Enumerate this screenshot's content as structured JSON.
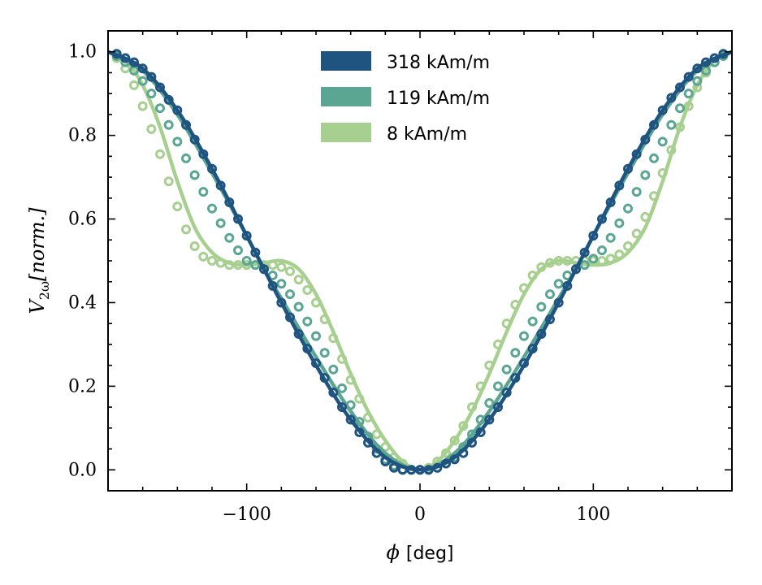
{
  "chart_data": {
    "type": "line",
    "xlabel_symbol": "ϕ",
    "xlabel_unit": "[deg]",
    "ylabel_main": "V",
    "ylabel_sub": "2ω",
    "ylabel_rest": "[norm.]",
    "xlim": [
      -180,
      180
    ],
    "ylim": [
      -0.05,
      1.05
    ],
    "xticks": [
      -100,
      0,
      100
    ],
    "xtick_labels": [
      "−100",
      "0",
      "100"
    ],
    "yticks": [
      0.0,
      0.2,
      0.4,
      0.6,
      0.8,
      1.0
    ],
    "ytick_labels": [
      "0.0",
      "0.2",
      "0.4",
      "0.6",
      "0.8",
      "1.0"
    ],
    "legend_position": "top-center",
    "series": [
      {
        "name": "318 kAm/m",
        "color": "#1f5481",
        "line": [
          [
            -180,
            1.0
          ],
          [
            -160,
            0.96
          ],
          [
            -140,
            0.86
          ],
          [
            -120,
            0.72
          ],
          [
            -100,
            0.56
          ],
          [
            -90,
            0.48
          ],
          [
            -80,
            0.4
          ],
          [
            -60,
            0.25
          ],
          [
            -40,
            0.12
          ],
          [
            -20,
            0.03
          ],
          [
            0,
            0.0
          ],
          [
            20,
            0.03
          ],
          [
            40,
            0.12
          ],
          [
            60,
            0.25
          ],
          [
            80,
            0.4
          ],
          [
            90,
            0.48
          ],
          [
            100,
            0.56
          ],
          [
            120,
            0.72
          ],
          [
            140,
            0.86
          ],
          [
            160,
            0.96
          ],
          [
            180,
            1.0
          ]
        ],
        "markers": [
          [
            -175,
            0.995
          ],
          [
            -170,
            0.985
          ],
          [
            -165,
            0.975
          ],
          [
            -160,
            0.96
          ],
          [
            -155,
            0.94
          ],
          [
            -150,
            0.915
          ],
          [
            -145,
            0.885
          ],
          [
            -140,
            0.86
          ],
          [
            -135,
            0.825
          ],
          [
            -130,
            0.79
          ],
          [
            -125,
            0.755
          ],
          [
            -120,
            0.72
          ],
          [
            -115,
            0.68
          ],
          [
            -110,
            0.64
          ],
          [
            -105,
            0.6
          ],
          [
            -100,
            0.56
          ],
          [
            -95,
            0.52
          ],
          [
            -90,
            0.48
          ],
          [
            -85,
            0.44
          ],
          [
            -80,
            0.4
          ],
          [
            -75,
            0.365
          ],
          [
            -70,
            0.325
          ],
          [
            -65,
            0.29
          ],
          [
            -60,
            0.255
          ],
          [
            -55,
            0.22
          ],
          [
            -50,
            0.185
          ],
          [
            -45,
            0.15
          ],
          [
            -40,
            0.12
          ],
          [
            -35,
            0.09
          ],
          [
            -30,
            0.065
          ],
          [
            -25,
            0.04
          ],
          [
            -20,
            0.02
          ],
          [
            -15,
            0.005
          ],
          [
            -10,
            0.0
          ],
          [
            -5,
            0.0
          ],
          [
            0,
            0.0
          ],
          [
            5,
            0.0
          ],
          [
            10,
            0.005
          ],
          [
            15,
            0.015
          ],
          [
            20,
            0.025
          ],
          [
            25,
            0.04
          ],
          [
            30,
            0.065
          ],
          [
            35,
            0.09
          ],
          [
            40,
            0.12
          ],
          [
            45,
            0.15
          ],
          [
            50,
            0.185
          ],
          [
            55,
            0.22
          ],
          [
            60,
            0.255
          ],
          [
            65,
            0.29
          ],
          [
            70,
            0.325
          ],
          [
            75,
            0.36
          ],
          [
            80,
            0.4
          ],
          [
            85,
            0.44
          ],
          [
            90,
            0.48
          ],
          [
            95,
            0.52
          ],
          [
            100,
            0.56
          ],
          [
            105,
            0.6
          ],
          [
            110,
            0.64
          ],
          [
            115,
            0.68
          ],
          [
            120,
            0.72
          ],
          [
            125,
            0.755
          ],
          [
            130,
            0.79
          ],
          [
            135,
            0.825
          ],
          [
            140,
            0.86
          ],
          [
            145,
            0.89
          ],
          [
            150,
            0.915
          ],
          [
            155,
            0.94
          ],
          [
            160,
            0.96
          ],
          [
            165,
            0.975
          ],
          [
            170,
            0.985
          ],
          [
            175,
            0.995
          ]
        ]
      },
      {
        "name": "119 kAm/m",
        "color": "#5aa692",
        "line": [
          [
            -180,
            1.0
          ],
          [
            -160,
            0.955
          ],
          [
            -140,
            0.85
          ],
          [
            -120,
            0.71
          ],
          [
            -100,
            0.56
          ],
          [
            -90,
            0.48
          ],
          [
            -80,
            0.41
          ],
          [
            -60,
            0.27
          ],
          [
            -40,
            0.14
          ],
          [
            -20,
            0.04
          ],
          [
            0,
            0.0
          ],
          [
            20,
            0.04
          ],
          [
            40,
            0.14
          ],
          [
            60,
            0.27
          ],
          [
            80,
            0.41
          ],
          [
            90,
            0.48
          ],
          [
            100,
            0.56
          ],
          [
            120,
            0.71
          ],
          [
            140,
            0.85
          ],
          [
            160,
            0.955
          ],
          [
            180,
            1.0
          ]
        ],
        "markers": [
          [
            -175,
            0.99
          ],
          [
            -170,
            0.975
          ],
          [
            -165,
            0.955
          ],
          [
            -160,
            0.93
          ],
          [
            -155,
            0.9
          ],
          [
            -150,
            0.865
          ],
          [
            -145,
            0.825
          ],
          [
            -140,
            0.785
          ],
          [
            -135,
            0.745
          ],
          [
            -130,
            0.705
          ],
          [
            -125,
            0.665
          ],
          [
            -120,
            0.625
          ],
          [
            -115,
            0.59
          ],
          [
            -110,
            0.555
          ],
          [
            -105,
            0.525
          ],
          [
            -100,
            0.5
          ],
          [
            -95,
            0.49
          ],
          [
            -90,
            0.48
          ],
          [
            -85,
            0.465
          ],
          [
            -80,
            0.445
          ],
          [
            -75,
            0.42
          ],
          [
            -70,
            0.39
          ],
          [
            -65,
            0.355
          ],
          [
            -60,
            0.32
          ],
          [
            -55,
            0.28
          ],
          [
            -50,
            0.24
          ],
          [
            -45,
            0.195
          ],
          [
            -40,
            0.155
          ],
          [
            -35,
            0.115
          ],
          [
            -30,
            0.08
          ],
          [
            -25,
            0.05
          ],
          [
            -20,
            0.025
          ],
          [
            -15,
            0.01
          ],
          [
            -10,
            0.0
          ],
          [
            -5,
            0.0
          ],
          [
            0,
            0.0
          ],
          [
            5,
            0.0
          ],
          [
            10,
            0.005
          ],
          [
            15,
            0.015
          ],
          [
            20,
            0.03
          ],
          [
            25,
            0.055
          ],
          [
            30,
            0.085
          ],
          [
            35,
            0.12
          ],
          [
            40,
            0.16
          ],
          [
            45,
            0.2
          ],
          [
            50,
            0.24
          ],
          [
            55,
            0.28
          ],
          [
            60,
            0.32
          ],
          [
            65,
            0.355
          ],
          [
            70,
            0.39
          ],
          [
            75,
            0.42
          ],
          [
            80,
            0.445
          ],
          [
            85,
            0.465
          ],
          [
            90,
            0.48
          ],
          [
            95,
            0.49
          ],
          [
            100,
            0.505
          ],
          [
            105,
            0.525
          ],
          [
            110,
            0.555
          ],
          [
            115,
            0.59
          ],
          [
            120,
            0.625
          ],
          [
            125,
            0.665
          ],
          [
            130,
            0.705
          ],
          [
            135,
            0.745
          ],
          [
            140,
            0.785
          ],
          [
            145,
            0.825
          ],
          [
            150,
            0.865
          ],
          [
            155,
            0.9
          ],
          [
            160,
            0.93
          ],
          [
            165,
            0.955
          ],
          [
            170,
            0.975
          ],
          [
            175,
            0.99
          ]
        ]
      },
      {
        "name": "8 kAm/m",
        "color": "#a7cf8f",
        "line": [
          [
            -180,
            1.0
          ],
          [
            -170,
            0.98
          ],
          [
            -160,
            0.92
          ],
          [
            -150,
            0.82
          ],
          [
            -140,
            0.69
          ],
          [
            -130,
            0.58
          ],
          [
            -120,
            0.52
          ],
          [
            -110,
            0.495
          ],
          [
            -100,
            0.49
          ],
          [
            -90,
            0.495
          ],
          [
            -80,
            0.5
          ],
          [
            -70,
            0.48
          ],
          [
            -60,
            0.42
          ],
          [
            -50,
            0.33
          ],
          [
            -40,
            0.23
          ],
          [
            -30,
            0.14
          ],
          [
            -20,
            0.07
          ],
          [
            -10,
            0.02
          ],
          [
            0,
            0.0
          ],
          [
            10,
            0.02
          ],
          [
            20,
            0.07
          ],
          [
            30,
            0.14
          ],
          [
            40,
            0.23
          ],
          [
            50,
            0.33
          ],
          [
            60,
            0.42
          ],
          [
            70,
            0.48
          ],
          [
            80,
            0.5
          ],
          [
            90,
            0.495
          ],
          [
            100,
            0.49
          ],
          [
            110,
            0.495
          ],
          [
            120,
            0.52
          ],
          [
            130,
            0.58
          ],
          [
            140,
            0.69
          ],
          [
            150,
            0.82
          ],
          [
            160,
            0.92
          ],
          [
            170,
            0.98
          ],
          [
            180,
            1.0
          ]
        ],
        "markers": [
          [
            -175,
            0.985
          ],
          [
            -170,
            0.96
          ],
          [
            -165,
            0.92
          ],
          [
            -160,
            0.87
          ],
          [
            -155,
            0.815
          ],
          [
            -150,
            0.755
          ],
          [
            -145,
            0.69
          ],
          [
            -140,
            0.63
          ],
          [
            -135,
            0.575
          ],
          [
            -130,
            0.535
          ],
          [
            -125,
            0.51
          ],
          [
            -120,
            0.5
          ],
          [
            -115,
            0.495
          ],
          [
            -110,
            0.49
          ],
          [
            -105,
            0.49
          ],
          [
            -100,
            0.49
          ],
          [
            -95,
            0.49
          ],
          [
            -90,
            0.49
          ],
          [
            -85,
            0.49
          ],
          [
            -80,
            0.485
          ],
          [
            -75,
            0.475
          ],
          [
            -70,
            0.455
          ],
          [
            -65,
            0.43
          ],
          [
            -60,
            0.4
          ],
          [
            -55,
            0.36
          ],
          [
            -50,
            0.315
          ],
          [
            -45,
            0.265
          ],
          [
            -40,
            0.215
          ],
          [
            -35,
            0.17
          ],
          [
            -30,
            0.125
          ],
          [
            -25,
            0.085
          ],
          [
            -20,
            0.055
          ],
          [
            -15,
            0.03
          ],
          [
            -10,
            0.015
          ],
          [
            -5,
            0.0
          ],
          [
            0,
            0.0
          ],
          [
            5,
            0.005
          ],
          [
            10,
            0.02
          ],
          [
            15,
            0.04
          ],
          [
            20,
            0.07
          ],
          [
            25,
            0.105
          ],
          [
            30,
            0.15
          ],
          [
            35,
            0.2
          ],
          [
            40,
            0.25
          ],
          [
            45,
            0.3
          ],
          [
            50,
            0.35
          ],
          [
            55,
            0.395
          ],
          [
            60,
            0.435
          ],
          [
            65,
            0.465
          ],
          [
            70,
            0.485
          ],
          [
            75,
            0.495
          ],
          [
            80,
            0.5
          ],
          [
            85,
            0.5
          ],
          [
            90,
            0.5
          ],
          [
            95,
            0.5
          ],
          [
            100,
            0.5
          ],
          [
            105,
            0.5
          ],
          [
            110,
            0.505
          ],
          [
            115,
            0.515
          ],
          [
            120,
            0.535
          ],
          [
            125,
            0.565
          ],
          [
            130,
            0.605
          ],
          [
            135,
            0.655
          ],
          [
            140,
            0.71
          ],
          [
            145,
            0.765
          ],
          [
            150,
            0.82
          ],
          [
            155,
            0.87
          ],
          [
            160,
            0.915
          ],
          [
            165,
            0.95
          ],
          [
            170,
            0.975
          ],
          [
            175,
            0.99
          ]
        ]
      }
    ]
  }
}
